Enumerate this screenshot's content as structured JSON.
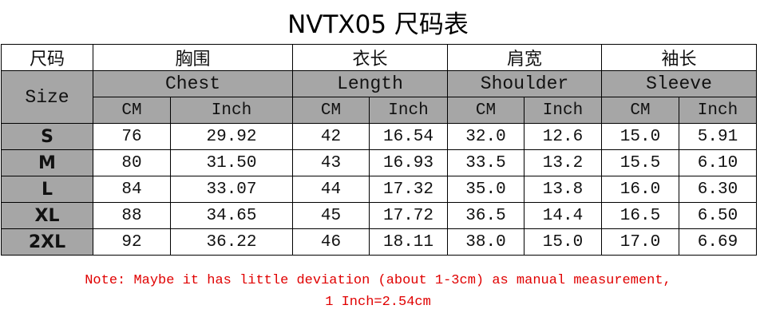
{
  "title": "NVTX05 尺码表",
  "header_cn": [
    "尺码",
    "胸围",
    "衣长",
    "肩宽",
    "袖长"
  ],
  "size_label": "Size",
  "measures": [
    "Chest",
    "Length",
    "Shoulder",
    "Sleeve"
  ],
  "units": [
    "CM",
    "Inch",
    "CM",
    "Inch",
    "CM",
    "Inch",
    "CM",
    "Inch"
  ],
  "rows": [
    {
      "size": "S",
      "values": [
        "76",
        "29.92",
        "42",
        "16.54",
        "32.0",
        "12.6",
        "15.0",
        "5.91"
      ]
    },
    {
      "size": "M",
      "values": [
        "80",
        "31.50",
        "43",
        "16.93",
        "33.5",
        "13.2",
        "15.5",
        "6.10"
      ]
    },
    {
      "size": "L",
      "values": [
        "84",
        "33.07",
        "44",
        "17.32",
        "35.0",
        "13.8",
        "16.0",
        "6.30"
      ]
    },
    {
      "size": "XL",
      "values": [
        "88",
        "34.65",
        "45",
        "17.72",
        "36.5",
        "14.4",
        "16.5",
        "6.50"
      ]
    },
    {
      "size": "2XL",
      "values": [
        "92",
        "36.22",
        "46",
        "18.11",
        "38.0",
        "15.0",
        "17.0",
        "6.69"
      ]
    }
  ],
  "note_line1": "Note: Maybe it has little deviation (about 1-3cm) as manual measurement,",
  "note_line2": "1 Inch=2.54cm",
  "colors": {
    "header_gray": "#a6a6a6",
    "note_red": "#e00000"
  }
}
